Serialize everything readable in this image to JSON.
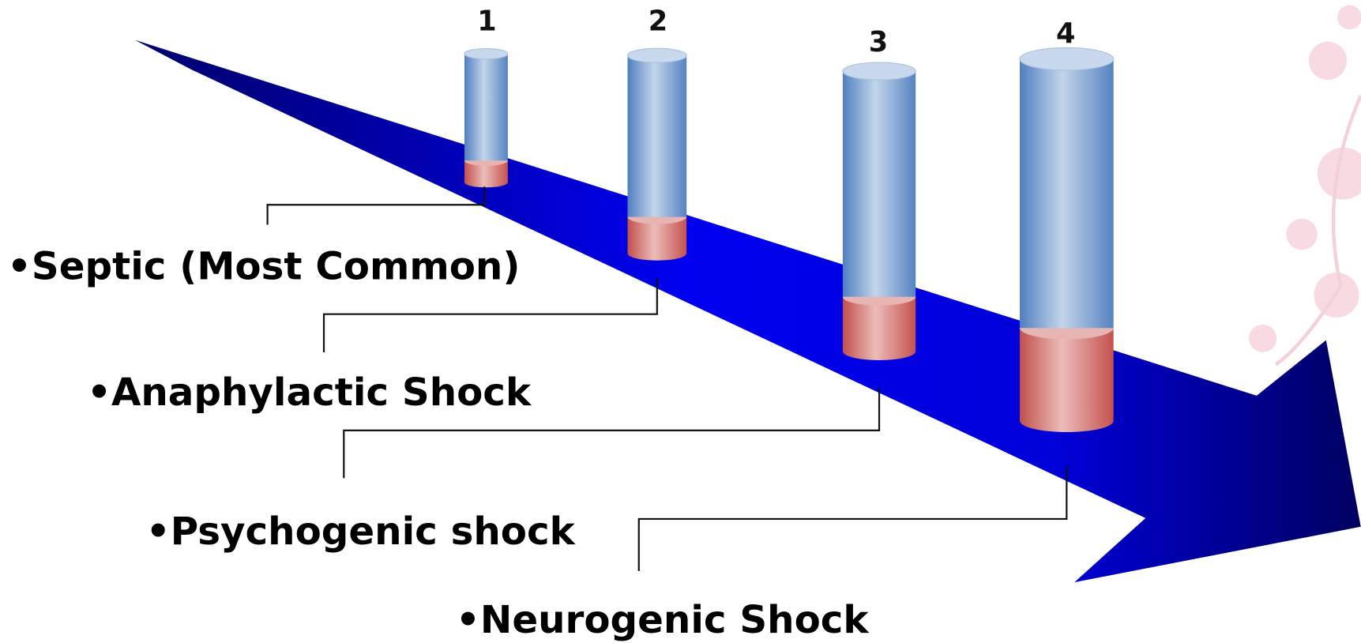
{
  "items": [
    {
      "number": "1",
      "label": "•Septic (Most Common)"
    },
    {
      "number": "2",
      "label": "•Anaphylactic Shock"
    },
    {
      "number": "3",
      "label": "•Psychogenic shock"
    },
    {
      "number": "4",
      "label": "•Neurogenic Shock"
    }
  ]
}
